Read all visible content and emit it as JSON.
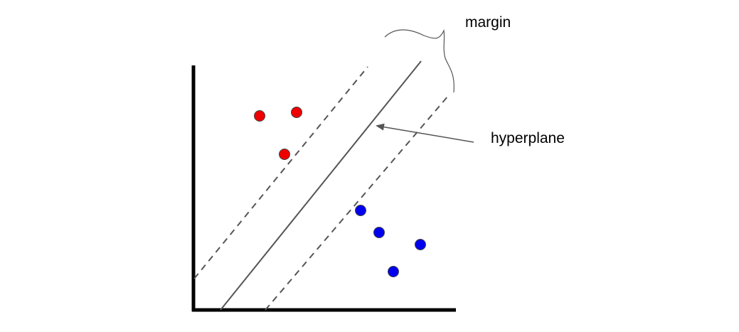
{
  "labels": {
    "margin": "margin",
    "hyperplane": "hyperplane"
  },
  "colors": {
    "class_a": "#ee0000",
    "class_b": "#0000ee",
    "axis": "#000000",
    "hyperplane": "#555555",
    "margin_lines": "#555555",
    "arrow": "#555555"
  },
  "points": {
    "class_a_count": 3,
    "class_b_count": 4
  }
}
